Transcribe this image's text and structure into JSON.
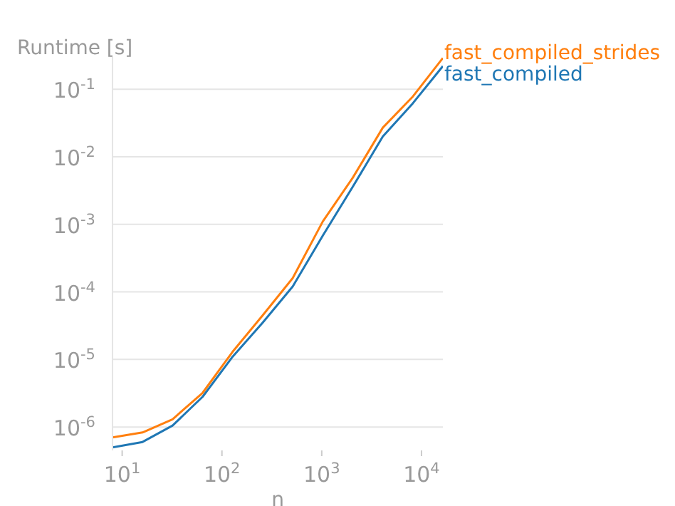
{
  "chart_data": {
    "type": "line",
    "xlabel": "n",
    "ylabel": "Runtime [s]",
    "log": "xy",
    "grid": "y",
    "marker": "none",
    "line_style": "solid",
    "x": [
      8,
      16,
      32,
      64,
      128,
      256,
      512,
      1024,
      2048,
      4096,
      8192,
      16384
    ],
    "series": [
      {
        "name": "fast_compiled",
        "color": "#1f77b4",
        "values": [
          5e-07,
          6e-07,
          1.05e-06,
          2.8e-06,
          1.1e-05,
          3.5e-05,
          0.00012,
          0.00068,
          0.0036,
          0.02,
          0.062,
          0.22
        ]
      },
      {
        "name": "fast_compiled_strides",
        "color": "#ff7f0e",
        "values": [
          7e-07,
          8.3e-07,
          1.3e-06,
          3.2e-06,
          1.3e-05,
          4.5e-05,
          0.00016,
          0.0011,
          0.0049,
          0.027,
          0.078,
          0.29
        ]
      }
    ],
    "xlim": [
      8,
      16384
    ],
    "ylim": [
      4.5e-07,
      0.3
    ],
    "xticks": [
      {
        "value": 10,
        "label": "10$^{1}$"
      },
      {
        "value": 100,
        "label": "10$^{2}$"
      },
      {
        "value": 1000,
        "label": "10$^{3}$"
      },
      {
        "value": 10000,
        "label": "10$^{4}$"
      }
    ],
    "yticks": [
      {
        "value": 1e-06,
        "label": "10$^{-6}$"
      },
      {
        "value": 1e-05,
        "label": "10$^{-5}$"
      },
      {
        "value": 0.0001,
        "label": "10$^{-4}$"
      },
      {
        "value": 0.001,
        "label": "10$^{-3}$"
      },
      {
        "value": 0.01,
        "label": "10$^{-2}$"
      },
      {
        "value": 0.1,
        "label": "10$^{-1}$"
      }
    ]
  }
}
